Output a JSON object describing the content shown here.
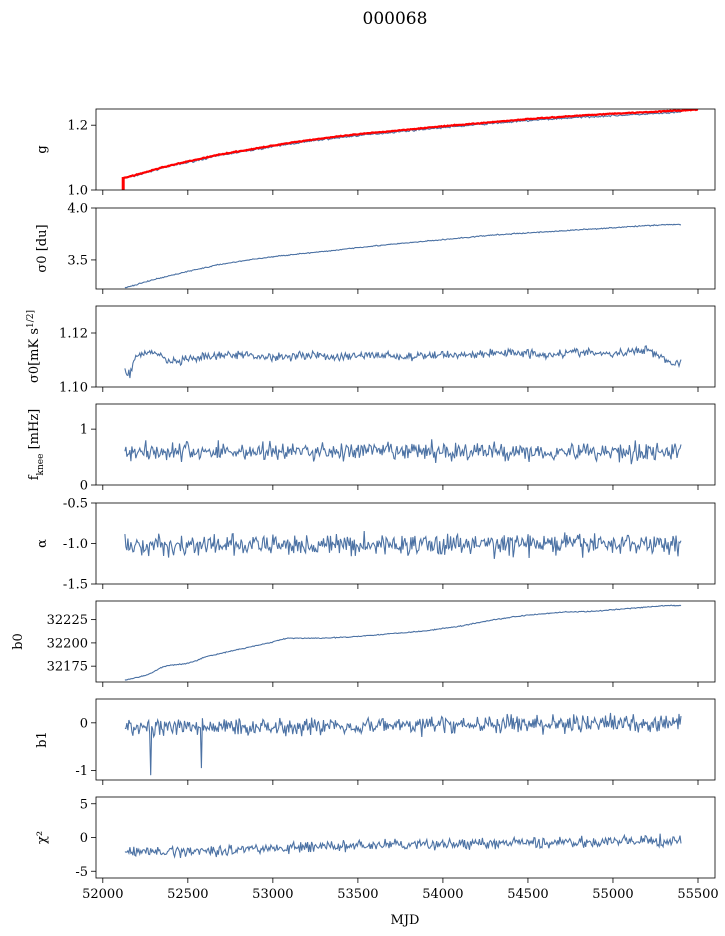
{
  "figure": {
    "title": "000068",
    "xlabel": "MJD"
  },
  "colors": {
    "series": "#4c72a4",
    "fit": "#ff0000",
    "axes": "#000000"
  },
  "chart_data": [
    {
      "type": "line",
      "ylabel": "g",
      "ylim": [
        1.0,
        1.25
      ],
      "yticks": [
        "1.0",
        "1.2"
      ],
      "ytick_values": [
        1.0,
        1.2
      ],
      "xlim": [
        51960,
        55600
      ],
      "xticks": [
        52000,
        52500,
        53000,
        53500,
        54000,
        54500,
        55000,
        55500
      ],
      "series": [
        {
          "x": [
            52120,
            52200,
            52350,
            52500,
            52700,
            52900,
            53100,
            53300,
            53500,
            53700,
            53900,
            54100,
            54300,
            54500,
            54700,
            54900,
            55100,
            55300,
            55400
          ],
          "y": [
            1.035,
            1.045,
            1.068,
            1.085,
            1.108,
            1.125,
            1.142,
            1.156,
            1.168,
            1.178,
            1.188,
            1.197,
            1.206,
            1.214,
            1.221,
            1.227,
            1.232,
            1.237,
            1.24
          ],
          "noise": 0.002
        },
        {
          "role": "fit",
          "x": [
            52120,
            52200,
            52350,
            52500,
            52700,
            52900,
            53100,
            53300,
            53500,
            53700,
            53900,
            54100,
            54300,
            54500,
            54700,
            54900,
            55100,
            55300,
            55500
          ],
          "y": [
            1.037,
            1.047,
            1.07,
            1.088,
            1.111,
            1.128,
            1.146,
            1.16,
            1.172,
            1.182,
            1.192,
            1.201,
            1.21,
            1.219,
            1.226,
            1.233,
            1.238,
            1.243,
            1.248
          ],
          "noise": 0.001,
          "step": {
            "x": 52120,
            "y0": 1.0,
            "y1": 1.04
          }
        }
      ]
    },
    {
      "type": "line",
      "ylabel": "σ0 [du]",
      "ylim": [
        3.22,
        4.0
      ],
      "yticks": [
        "3.5",
        "4.0"
      ],
      "ytick_values": [
        3.5,
        4.0
      ],
      "xlim": [
        51960,
        55600
      ],
      "xticks": [
        52000,
        52500,
        53000,
        53500,
        54000,
        54500,
        55000,
        55500
      ],
      "series": [
        {
          "x": [
            52130,
            52300,
            52500,
            52700,
            52900,
            53100,
            53300,
            53500,
            53700,
            53900,
            54100,
            54300,
            54500,
            54700,
            54900,
            55100,
            55300,
            55400
          ],
          "y": [
            3.23,
            3.31,
            3.39,
            3.46,
            3.51,
            3.55,
            3.58,
            3.62,
            3.65,
            3.68,
            3.71,
            3.74,
            3.76,
            3.78,
            3.8,
            3.82,
            3.84,
            3.84
          ],
          "noise": 0.004
        }
      ]
    },
    {
      "type": "line",
      "ylabel": "σ0[mK s^1/2]",
      "ylim": [
        1.1,
        1.13
      ],
      "yticks": [
        "1.10",
        "1.12"
      ],
      "ytick_values": [
        1.1,
        1.12
      ],
      "xlim": [
        51960,
        55600
      ],
      "xticks": [
        52000,
        52500,
        53000,
        53500,
        54000,
        54500,
        55000,
        55500
      ],
      "series": [
        {
          "x": [
            52130,
            52160,
            52200,
            52300,
            52400,
            52600,
            52800,
            53000,
            53200,
            53400,
            53600,
            53800,
            54000,
            54200,
            54400,
            54600,
            54800,
            55000,
            55200,
            55300,
            55350,
            55400
          ],
          "y": [
            1.106,
            1.105,
            1.112,
            1.113,
            1.109,
            1.111,
            1.112,
            1.111,
            1.112,
            1.111,
            1.112,
            1.111,
            1.112,
            1.112,
            1.113,
            1.112,
            1.113,
            1.112,
            1.114,
            1.111,
            1.108,
            1.11
          ],
          "noise": 0.0012
        }
      ]
    },
    {
      "type": "line",
      "ylabel": "f_knee [mHz]",
      "ylim": [
        0.0,
        1.45
      ],
      "yticks": [
        "0",
        "1"
      ],
      "ytick_values": [
        0,
        1
      ],
      "xlim": [
        51960,
        55600
      ],
      "xticks": [
        52000,
        52500,
        53000,
        53500,
        54000,
        54500,
        55000,
        55500
      ],
      "series": [
        {
          "x": [
            52130,
            55400
          ],
          "y": [
            0.6,
            0.6
          ],
          "noise": 0.13
        }
      ]
    },
    {
      "type": "line",
      "ylabel": "α",
      "ylim": [
        -1.5,
        -0.5
      ],
      "yticks": [
        "-1.5",
        "-1.0",
        "-0.5"
      ],
      "ytick_values": [
        -1.5,
        -1.0,
        -0.5
      ],
      "xlim": [
        51960,
        55600
      ],
      "xticks": [
        52000,
        52500,
        53000,
        53500,
        54000,
        54500,
        55000,
        55500
      ],
      "series": [
        {
          "x": [
            52130,
            55400
          ],
          "y": [
            -1.03,
            -1.0
          ],
          "noise": 0.1
        }
      ]
    },
    {
      "type": "line",
      "ylabel": "b0",
      "ylim": [
        32158,
        32245
      ],
      "yticks": [
        "32175",
        "32200",
        "32225"
      ],
      "ytick_values": [
        32175,
        32200,
        32225
      ],
      "xlim": [
        51960,
        55600
      ],
      "xticks": [
        52000,
        52500,
        53000,
        53500,
        54000,
        54500,
        55000,
        55500
      ],
      "series": [
        {
          "x": [
            52130,
            52250,
            52300,
            52350,
            52400,
            52500,
            52550,
            52600,
            52700,
            52800,
            52900,
            53000,
            53050,
            53100,
            53300,
            53500,
            53700,
            53900,
            54100,
            54300,
            54500,
            54700,
            54900,
            55100,
            55300,
            55400
          ],
          "y": [
            32160,
            32165,
            32169,
            32174,
            32176,
            32178,
            32181,
            32185,
            32189,
            32193,
            32197,
            32201,
            32204,
            32205,
            32205,
            32207,
            32210,
            32213,
            32218,
            32225,
            32230,
            32233,
            32234,
            32237,
            32240,
            32240
          ],
          "noise": 0.4
        }
      ]
    },
    {
      "type": "line",
      "ylabel": "b1",
      "ylim": [
        -1.2,
        0.5
      ],
      "yticks": [
        "-1",
        "0"
      ],
      "ytick_values": [
        -1,
        0
      ],
      "xlim": [
        51960,
        55600
      ],
      "xticks": [
        52000,
        52500,
        53000,
        53500,
        54000,
        54500,
        55000,
        55500
      ],
      "series": [
        {
          "x": [
            52130,
            55400
          ],
          "y": [
            -0.1,
            0.0
          ],
          "noise": 0.14,
          "spikes": [
            {
              "x": 52280,
              "y": -1.1
            },
            {
              "x": 52580,
              "y": -0.95
            }
          ]
        }
      ]
    },
    {
      "type": "line",
      "ylabel": "χ²",
      "ylim": [
        -6,
        6
      ],
      "yticks": [
        "-5",
        "0",
        "5"
      ],
      "ytick_values": [
        -5,
        0,
        5
      ],
      "xlim": [
        51960,
        55600
      ],
      "xticks": [
        52000,
        52500,
        53000,
        53500,
        54000,
        54500,
        55000,
        55500
      ],
      "series": [
        {
          "x": [
            52130,
            52500,
            53000,
            53500,
            54000,
            54500,
            55000,
            55400
          ],
          "y": [
            -2.2,
            -2.0,
            -1.6,
            -1.2,
            -1.0,
            -0.8,
            -0.6,
            -0.5
          ],
          "noise": 0.6
        }
      ]
    }
  ]
}
